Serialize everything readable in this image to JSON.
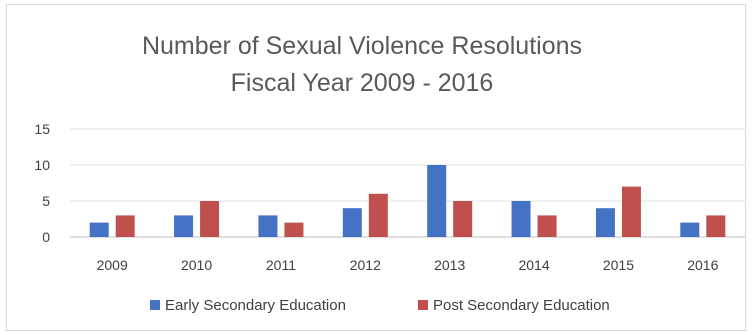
{
  "chart_data": {
    "type": "bar",
    "title_lines": [
      "Number of Sexual Violence Resolutions",
      "Fiscal Year 2009 - 2016"
    ],
    "categories": [
      "2009",
      "2010",
      "2011",
      "2012",
      "2013",
      "2014",
      "2015",
      "2016"
    ],
    "series": [
      {
        "name": "Early Secondary Education",
        "color": "#4472c4",
        "values": [
          2,
          3,
          3,
          4,
          10,
          5,
          4,
          2
        ]
      },
      {
        "name": "Post Secondary Education",
        "color": "#c0504d",
        "values": [
          3,
          5,
          2,
          6,
          5,
          3,
          7,
          3
        ]
      }
    ],
    "y_ticks": [
      "0",
      "5",
      "10",
      "15"
    ],
    "ylim": [
      0,
      15
    ],
    "grid": true,
    "legend_position": "bottom"
  }
}
